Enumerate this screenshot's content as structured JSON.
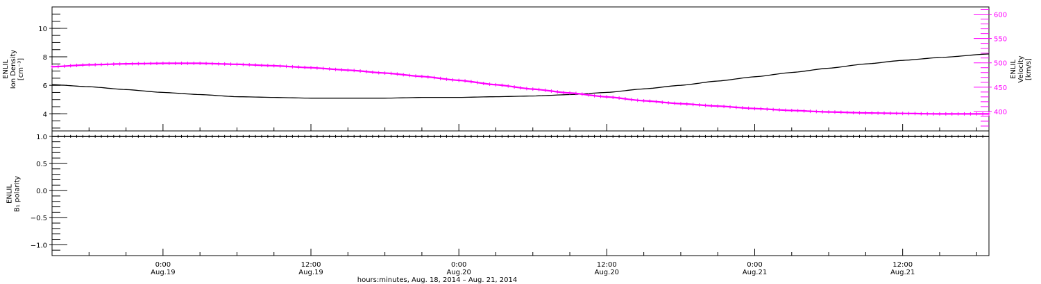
{
  "colors": {
    "density": "#000000",
    "velocity": "#ff00ff",
    "polarity": "#000000",
    "axis": "#000000"
  },
  "chart_data": [
    {
      "type": "line",
      "panel": "top",
      "left_ylabel_lines": [
        "ENLIL",
        "Ion Density",
        "[cm⁻³]"
      ],
      "right_ylabel_lines": [
        "ENLIL",
        "Velocity",
        "[km/s]"
      ],
      "ylim_left": [
        2.8,
        11.5
      ],
      "yticks_left": [
        4,
        6,
        8,
        10
      ],
      "ytick_labels_left": [
        "4",
        "6",
        "8",
        "10"
      ],
      "ylim_right": [
        360,
        615
      ],
      "yticks_right": [
        400,
        450,
        500,
        550,
        600
      ],
      "ytick_labels_right": [
        "400",
        "450",
        "500",
        "550",
        "600"
      ],
      "series": [
        {
          "axis": "left",
          "x_hours_since_aug18": [
            15,
            18,
            21,
            24,
            27,
            30,
            33,
            36,
            39,
            42,
            45,
            48,
            51,
            54,
            57,
            60,
            63,
            66,
            69,
            72,
            75,
            78,
            81,
            84,
            87,
            91
          ],
          "values": [
            6.05,
            5.9,
            5.7,
            5.5,
            5.35,
            5.2,
            5.15,
            5.1,
            5.1,
            5.1,
            5.15,
            5.15,
            5.2,
            5.25,
            5.35,
            5.5,
            5.75,
            6.0,
            6.3,
            6.6,
            6.9,
            7.2,
            7.5,
            7.75,
            7.95,
            8.2
          ]
        },
        {
          "axis": "right",
          "x_hours_since_aug18": [
            15,
            18,
            21,
            24,
            27,
            30,
            33,
            36,
            39,
            42,
            45,
            48,
            51,
            54,
            57,
            60,
            63,
            66,
            69,
            72,
            75,
            78,
            81,
            84,
            87,
            91
          ],
          "values": [
            492,
            496,
            498,
            499,
            499,
            497,
            494,
            490,
            485,
            479,
            472,
            464,
            455,
            446,
            438,
            430,
            422,
            416,
            411,
            406,
            402,
            399,
            397,
            396,
            395,
            395
          ]
        }
      ]
    },
    {
      "type": "scatter",
      "panel": "bottom",
      "left_ylabel_lines": [
        "ENLIL",
        "B₁ polarity"
      ],
      "ylim": [
        -1.2,
        1.1
      ],
      "yticks": [
        -1.0,
        -0.5,
        0.0,
        0.5,
        1.0
      ],
      "ytick_labels": [
        "−1.0",
        "−0.5",
        "0.0",
        "0.5",
        "1.0"
      ],
      "series": [
        {
          "x_hours_since_aug18": [
            15,
            91
          ],
          "values": [
            1.0,
            1.0
          ]
        }
      ],
      "xlim_hours_since_aug18": [
        15,
        91
      ],
      "xticks_hours_since_aug18": [
        24,
        36,
        48,
        60,
        72,
        84
      ],
      "xtick_labels": [
        [
          "0:00",
          "Aug.19"
        ],
        [
          "12:00",
          "Aug.19"
        ],
        [
          "0:00",
          "Aug.20"
        ],
        [
          "12:00",
          "Aug.20"
        ],
        [
          "0:00",
          "Aug.21"
        ],
        [
          "12:00",
          "Aug.21"
        ]
      ],
      "xlabel": "hours:minutes, Aug. 18, 2014 – Aug. 21, 2014"
    }
  ]
}
